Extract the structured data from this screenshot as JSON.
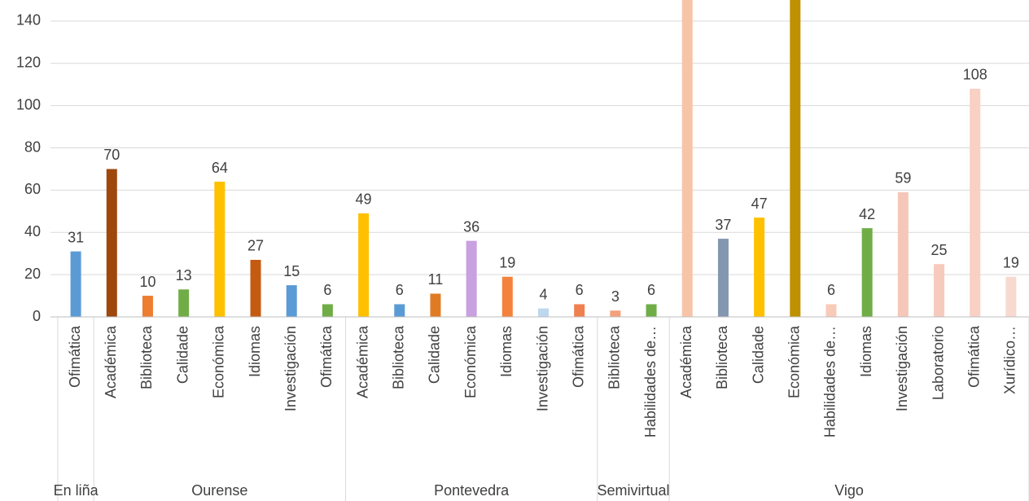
{
  "chart_data": {
    "type": "bar",
    "ylim": [
      0,
      150
    ],
    "yticks": [
      0,
      20,
      40,
      60,
      80,
      100,
      120,
      140
    ],
    "grid": true,
    "groups": [
      {
        "name": "En liña",
        "categories": [
          "Ofimática"
        ],
        "values": [
          31
        ],
        "colors": [
          "#5b9bd5"
        ]
      },
      {
        "name": "Ourense",
        "categories": [
          "Académica",
          "Biblioteca",
          "Calidade",
          "Económica",
          "Idiomas",
          "Investigación",
          "Ofimática"
        ],
        "values": [
          70,
          10,
          13,
          64,
          27,
          15,
          6
        ],
        "colors": [
          "#9e480e",
          "#ed7d31",
          "#70ad47",
          "#ffc000",
          "#c55a11",
          "#5b9bd5",
          "#70ad47"
        ]
      },
      {
        "name": "Pontevedra",
        "categories": [
          "Académica",
          "Biblioteca",
          "Calidade",
          "Económica",
          "Idiomas",
          "Investigación",
          "Ofimática"
        ],
        "values": [
          49,
          6,
          11,
          36,
          19,
          4,
          6
        ],
        "colors": [
          "#ffc000",
          "#5b9bd5",
          "#e07b24",
          "#c9a0e0",
          "#f4823c",
          "#bdd7ee",
          "#f08050"
        ]
      },
      {
        "name": "Semivirtual",
        "categories": [
          "Biblioteca",
          "Habilidades de…"
        ],
        "values": [
          3,
          6
        ],
        "colors": [
          "#f4a07a",
          "#70ad47"
        ]
      },
      {
        "name": "Vigo",
        "categories": [
          "Académica",
          "Biblioteca",
          "Calidade",
          "Económica",
          "Habilidades de…",
          "Idiomas",
          "Investigación",
          "Laboratorio",
          "Ofimática",
          "Xurídico…"
        ],
        "values": [
          160,
          37,
          47,
          160,
          6,
          42,
          59,
          25,
          108,
          19
        ],
        "colors": [
          "#f8c4a8",
          "#8497b0",
          "#ffc000",
          "#bf9000",
          "#f8cbb8",
          "#70ad47",
          "#f4c7b8",
          "#f6cbbd",
          "#f8d0c4",
          "#f8d9d0"
        ]
      }
    ]
  }
}
